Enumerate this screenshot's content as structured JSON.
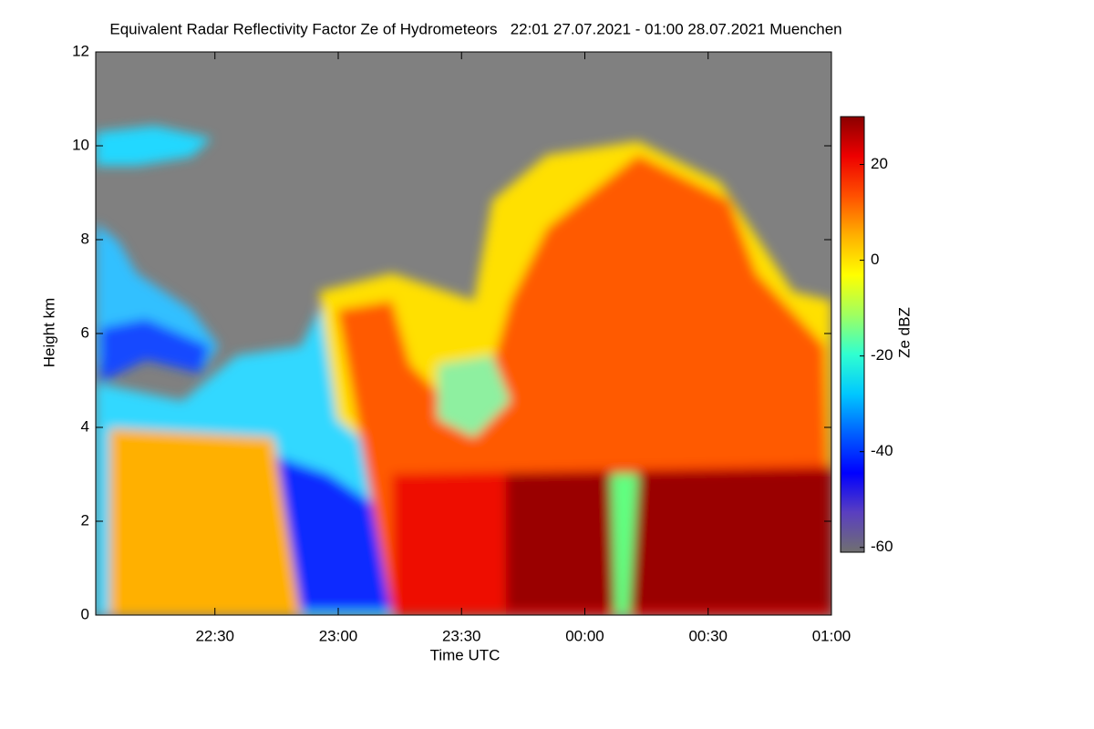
{
  "chart_data": {
    "type": "heatmap",
    "title": "Equivalent Radar Reflectivity Factor Ze of Hydrometeors   22:01 27.07.2021 - 01:00 28.07.2021 Muenchen",
    "xlabel": "Time UTC",
    "ylabel": "Height km",
    "colorbar_label": "Ze dBZ",
    "xlim": [
      22.0167,
      25
    ],
    "xticks": [
      {
        "value": 22.5,
        "label": "22:30"
      },
      {
        "value": 23,
        "label": "23:00"
      },
      {
        "value": 23.5,
        "label": "23:30"
      },
      {
        "value": 24,
        "label": "00:00"
      },
      {
        "value": 24.5,
        "label": "00:30"
      },
      {
        "value": 25,
        "label": "01:00"
      }
    ],
    "ylim": [
      0,
      12
    ],
    "yticks": [
      0,
      2,
      4,
      6,
      8,
      10,
      12
    ],
    "clim": [
      -61,
      30
    ],
    "cticks": [
      -60,
      -40,
      -20,
      0,
      20
    ],
    "colormap": [
      "#707070",
      "#5a3fc0",
      "#0000ff",
      "#0060ff",
      "#00c8ff",
      "#30ffd0",
      "#a0ff60",
      "#ffff00",
      "#ffb000",
      "#ff5000",
      "#ee0000",
      "#8b0000"
    ],
    "background_color": "#808080"
  }
}
